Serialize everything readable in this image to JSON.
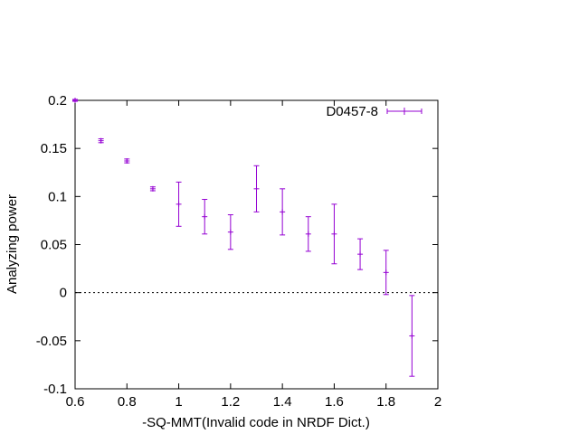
{
  "chart_data": {
    "type": "scatter",
    "title": "",
    "xlabel": "-SQ-MMT(Invalid code in NRDF Dict.)",
    "ylabel": "Analyzing power",
    "xlim": [
      0.6,
      2.0
    ],
    "ylim": [
      -0.1,
      0.2
    ],
    "x_ticks": [
      "0.6",
      "0.8",
      "1",
      "1.2",
      "1.4",
      "1.6",
      "1.8",
      "2"
    ],
    "y_ticks": [
      "-0.1",
      "-0.05",
      "0",
      "0.05",
      "0.1",
      "0.15",
      "0.2"
    ],
    "zero_line": true,
    "grid": false,
    "legend_position": "top-right",
    "series": [
      {
        "name": "D0457-8",
        "color": "#9400d3",
        "points": [
          {
            "x": 0.6,
            "y": 0.2,
            "yerr": 0.001
          },
          {
            "x": 0.7,
            "y": 0.158,
            "yerr": 0.002
          },
          {
            "x": 0.8,
            "y": 0.137,
            "yerr": 0.002
          },
          {
            "x": 0.9,
            "y": 0.108,
            "yerr": 0.002
          },
          {
            "x": 1.0,
            "y": 0.092,
            "yerr": 0.023
          },
          {
            "x": 1.1,
            "y": 0.079,
            "yerr": 0.018
          },
          {
            "x": 1.2,
            "y": 0.063,
            "yerr": 0.018
          },
          {
            "x": 1.3,
            "y": 0.108,
            "yerr": 0.024
          },
          {
            "x": 1.4,
            "y": 0.084,
            "yerr": 0.024
          },
          {
            "x": 1.5,
            "y": 0.061,
            "yerr": 0.018
          },
          {
            "x": 1.6,
            "y": 0.061,
            "yerr": 0.031
          },
          {
            "x": 1.7,
            "y": 0.04,
            "yerr": 0.016
          },
          {
            "x": 1.8,
            "y": 0.021,
            "yerr": 0.023
          },
          {
            "x": 1.9,
            "y": -0.045,
            "yerr": 0.042
          }
        ]
      }
    ]
  }
}
